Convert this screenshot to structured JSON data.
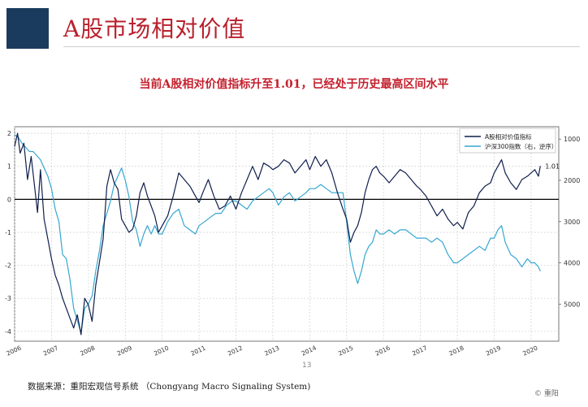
{
  "header": {
    "title": "A股市场相对价值",
    "subtitle": "当前A股相对价值指标升至1.01，已经处于历史最高区间水平",
    "brand_color": "#1b3b5e",
    "title_color": "#b9202c"
  },
  "footer": {
    "source": "数据来源：重阳宏观信号系统 （Chongyang Macro Signaling System)",
    "page_number": "13",
    "brand": "© 重阳"
  },
  "chart_data": {
    "type": "line",
    "legend_position": "top-right",
    "grid": true,
    "x_ticks": [
      "2006",
      "2007",
      "2008",
      "2009",
      "2010",
      "2011",
      "2012",
      "2013",
      "2014",
      "2015",
      "2016",
      "2017",
      "2018",
      "2019",
      "2020"
    ],
    "x_range": [
      2006.0,
      2020.75
    ],
    "y_left_ticks": [
      "2",
      "1",
      "0",
      "-1",
      "-2",
      "-3",
      "-4"
    ],
    "y_left_range": [
      -4.3,
      2.2
    ],
    "y_right_ticks": [
      "1000",
      "2000",
      "3000",
      "4000",
      "5000"
    ],
    "y_right_range": [
      700,
      5900
    ],
    "y_right_inverted": true,
    "zero_line": 0,
    "annotation": {
      "text": "1.01",
      "x": 2020.25,
      "y": 1.01
    },
    "series": [
      {
        "name": "A股相对价值指标",
        "color": "#0f1f4d",
        "axis": "left",
        "x": [
          2006.0,
          2006.08,
          2006.15,
          2006.25,
          2006.35,
          2006.45,
          2006.55,
          2006.62,
          2006.7,
          2006.8,
          2006.9,
          2007.0,
          2007.1,
          2007.2,
          2007.3,
          2007.4,
          2007.5,
          2007.6,
          2007.7,
          2007.8,
          2007.9,
          2008.0,
          2008.1,
          2008.2,
          2008.3,
          2008.4,
          2008.5,
          2008.6,
          2008.7,
          2008.8,
          2008.9,
          2009.0,
          2009.1,
          2009.2,
          2009.3,
          2009.4,
          2009.5,
          2009.6,
          2009.7,
          2009.8,
          2009.9,
          2010.0,
          2010.15,
          2010.3,
          2010.45,
          2010.6,
          2010.75,
          2010.9,
          2011.0,
          2011.1,
          2011.25,
          2011.4,
          2011.55,
          2011.7,
          2011.85,
          2012.0,
          2012.15,
          2012.3,
          2012.45,
          2012.6,
          2012.75,
          2012.9,
          2013.0,
          2013.15,
          2013.3,
          2013.45,
          2013.6,
          2013.75,
          2013.9,
          2014.0,
          2014.15,
          2014.3,
          2014.45,
          2014.6,
          2014.75,
          2014.9,
          2015.0,
          2015.1,
          2015.2,
          2015.3,
          2015.4,
          2015.5,
          2015.6,
          2015.7,
          2015.8,
          2015.9,
          2016.0,
          2016.15,
          2016.3,
          2016.45,
          2016.6,
          2016.75,
          2016.9,
          2017.0,
          2017.15,
          2017.3,
          2017.45,
          2017.6,
          2017.75,
          2017.9,
          2018.0,
          2018.15,
          2018.3,
          2018.45,
          2018.6,
          2018.75,
          2018.9,
          2019.0,
          2019.1,
          2019.2,
          2019.3,
          2019.45,
          2019.6,
          2019.75,
          2019.9,
          2020.0,
          2020.1,
          2020.2,
          2020.25
        ],
        "values": [
          1.6,
          2.0,
          1.4,
          1.7,
          0.6,
          1.3,
          0.3,
          -0.4,
          0.9,
          -0.6,
          -1.2,
          -1.8,
          -2.3,
          -2.6,
          -3.0,
          -3.3,
          -3.6,
          -3.9,
          -3.5,
          -4.1,
          -3.0,
          -3.2,
          -3.7,
          -2.6,
          -1.9,
          -1.2,
          0.4,
          0.9,
          0.5,
          0.3,
          -0.6,
          -0.8,
          -1.0,
          -0.9,
          -0.5,
          0.2,
          0.5,
          0.1,
          -0.2,
          -0.5,
          -1.0,
          -0.8,
          -0.5,
          0.1,
          0.8,
          0.6,
          0.4,
          0.1,
          -0.1,
          0.2,
          0.6,
          0.1,
          -0.3,
          -0.2,
          0.1,
          -0.3,
          0.2,
          0.6,
          1.0,
          0.6,
          1.1,
          1.0,
          0.9,
          1.0,
          1.2,
          1.1,
          0.8,
          1.0,
          1.2,
          0.9,
          1.3,
          1.0,
          1.2,
          0.8,
          0.2,
          -0.3,
          -0.6,
          -1.3,
          -1.0,
          -0.8,
          -0.4,
          0.2,
          0.6,
          0.9,
          1.0,
          0.8,
          0.7,
          0.5,
          0.7,
          0.9,
          0.8,
          0.6,
          0.4,
          0.3,
          0.1,
          -0.2,
          -0.5,
          -0.3,
          -0.6,
          -0.8,
          -0.7,
          -0.9,
          -0.4,
          -0.2,
          0.2,
          0.4,
          0.5,
          0.8,
          1.0,
          1.2,
          0.8,
          0.5,
          0.3,
          0.6,
          0.7,
          0.8,
          0.9,
          0.7,
          1.01
        ]
      },
      {
        "name": "沪深300指数（右，逆序）",
        "color": "#35a7d1",
        "axis": "right",
        "x": [
          2006.0,
          2006.1,
          2006.2,
          2006.3,
          2006.4,
          2006.5,
          2006.6,
          2006.7,
          2006.8,
          2006.9,
          2007.0,
          2007.1,
          2007.2,
          2007.3,
          2007.4,
          2007.5,
          2007.6,
          2007.7,
          2007.8,
          2007.9,
          2008.0,
          2008.1,
          2008.2,
          2008.3,
          2008.4,
          2008.5,
          2008.6,
          2008.7,
          2008.8,
          2008.9,
          2009.0,
          2009.1,
          2009.2,
          2009.3,
          2009.4,
          2009.5,
          2009.6,
          2009.7,
          2009.8,
          2009.9,
          2010.0,
          2010.15,
          2010.3,
          2010.45,
          2010.6,
          2010.75,
          2010.9,
          2011.0,
          2011.15,
          2011.3,
          2011.45,
          2011.6,
          2011.75,
          2011.9,
          2012.0,
          2012.15,
          2012.3,
          2012.45,
          2012.6,
          2012.75,
          2012.9,
          2013.0,
          2013.15,
          2013.3,
          2013.45,
          2013.6,
          2013.75,
          2013.9,
          2014.0,
          2014.15,
          2014.3,
          2014.45,
          2014.6,
          2014.75,
          2014.9,
          2015.0,
          2015.1,
          2015.2,
          2015.3,
          2015.4,
          2015.5,
          2015.6,
          2015.7,
          2015.8,
          2015.9,
          2016.0,
          2016.15,
          2016.3,
          2016.45,
          2016.6,
          2016.75,
          2016.9,
          2017.0,
          2017.15,
          2017.3,
          2017.45,
          2017.6,
          2017.75,
          2017.9,
          2018.0,
          2018.15,
          2018.3,
          2018.45,
          2018.6,
          2018.75,
          2018.9,
          2019.0,
          2019.1,
          2019.2,
          2019.3,
          2019.45,
          2019.6,
          2019.75,
          2019.9,
          2020.0,
          2020.1,
          2020.2,
          2020.25
        ],
        "values": [
          900,
          950,
          1100,
          1200,
          1300,
          1300,
          1400,
          1500,
          1700,
          1900,
          2200,
          2700,
          3000,
          3800,
          3900,
          4400,
          5100,
          5400,
          5700,
          5100,
          5000,
          4800,
          4200,
          3700,
          3100,
          2800,
          2500,
          2100,
          1900,
          1700,
          2000,
          2400,
          3000,
          3200,
          3600,
          3300,
          3100,
          3300,
          3100,
          3300,
          3300,
          3000,
          2800,
          2700,
          3100,
          3200,
          3300,
          3100,
          3000,
          2900,
          2800,
          2800,
          2600,
          2500,
          2500,
          2600,
          2700,
          2500,
          2400,
          2300,
          2200,
          2300,
          2600,
          2400,
          2300,
          2500,
          2400,
          2300,
          2200,
          2200,
          2100,
          2200,
          2300,
          2300,
          2300,
          3000,
          3800,
          4200,
          4500,
          4200,
          3800,
          3600,
          3500,
          3200,
          3300,
          3300,
          3200,
          3300,
          3200,
          3200,
          3300,
          3400,
          3400,
          3400,
          3500,
          3400,
          3500,
          3800,
          4000,
          4000,
          3900,
          3800,
          3700,
          3600,
          3700,
          3400,
          3400,
          3200,
          3100,
          3500,
          3800,
          3900,
          4100,
          3900,
          4000,
          4000,
          4100,
          4200
        ]
      }
    ]
  }
}
